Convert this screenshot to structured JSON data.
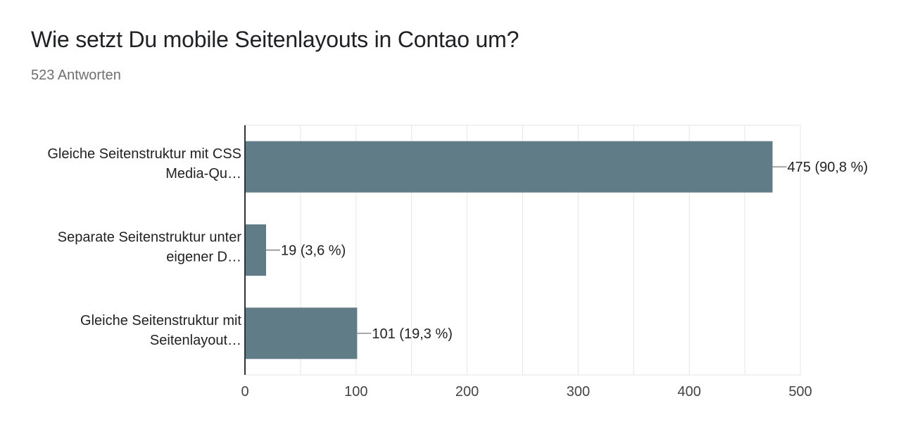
{
  "header": {
    "title": "Wie setzt Du mobile Seitenlayouts in Contao um?",
    "responses": "523 Antworten"
  },
  "colors": {
    "bar": "#607d87",
    "grid": "#e6e6e6",
    "axis": "#333333"
  },
  "chart_data": {
    "type": "bar",
    "orientation": "horizontal",
    "categories": [
      [
        "Gleiche Seitenstruktur mit CSS",
        "Media-Qu…"
      ],
      [
        "Separate Seitenstruktur unter",
        "eigener D…"
      ],
      [
        "Gleiche Seitenstruktur mit",
        "Seitenlayout…"
      ]
    ],
    "values": [
      475,
      19,
      101
    ],
    "data_labels": [
      "475 (90,8 %)",
      "19 (3,6 %)",
      "101 (19,3 %)"
    ],
    "xlim": [
      0,
      500
    ],
    "xticks": [
      0,
      100,
      200,
      300,
      400,
      500
    ],
    "grid": true
  }
}
